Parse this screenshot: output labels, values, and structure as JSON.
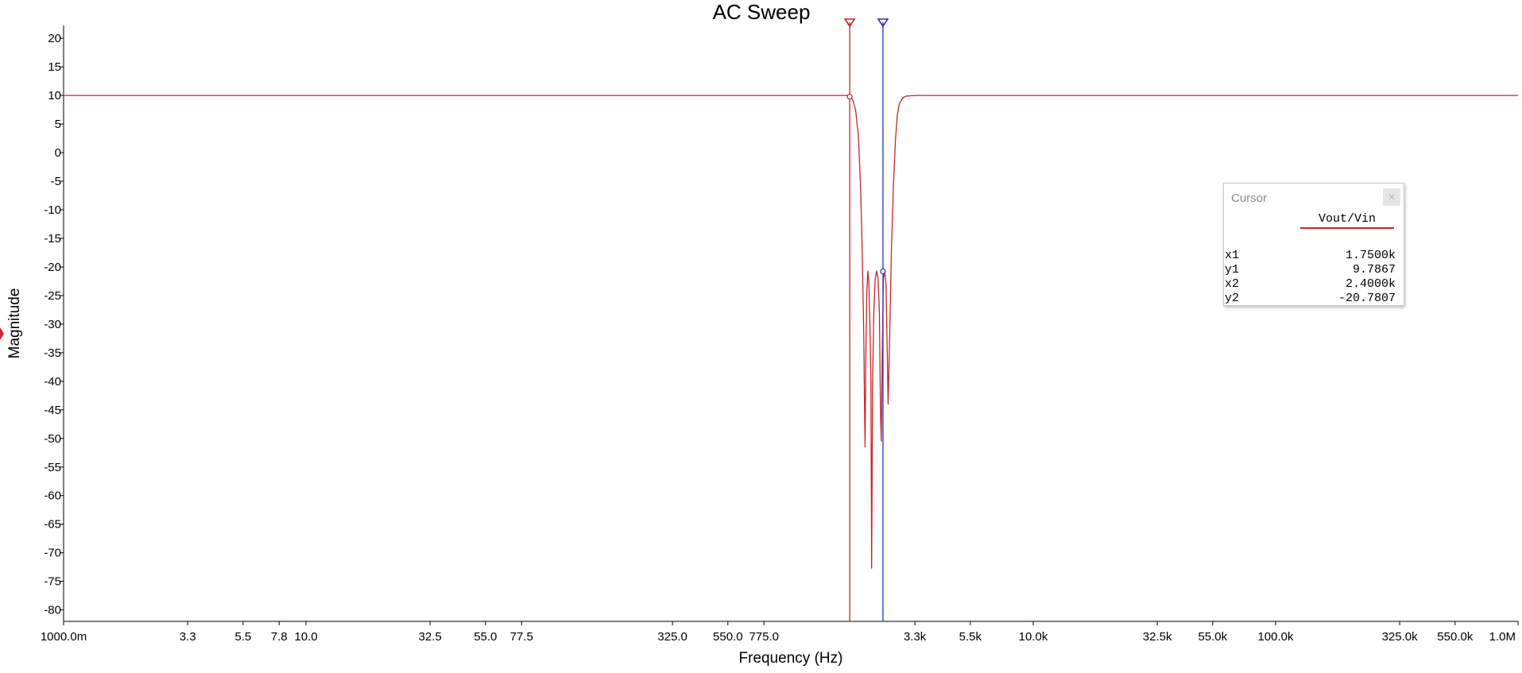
{
  "chart_data": {
    "type": "line",
    "title": "AC Sweep",
    "xlabel": "Frequency (Hz)",
    "ylabel": "Magnitude",
    "x_scale": "log",
    "xlim": [
      1,
      1000000
    ],
    "ylim": [
      -82,
      21
    ],
    "grid": false,
    "y_ticks": [
      20,
      15,
      10,
      5,
      0,
      -5,
      -10,
      -15,
      -20,
      -25,
      -30,
      -35,
      -40,
      -45,
      -50,
      -55,
      -60,
      -65,
      -70,
      -75,
      -80
    ],
    "x_ticks": [
      {
        "value": 1,
        "label": "1000.0m"
      },
      {
        "value": 3.25,
        "label": "3.3"
      },
      {
        "value": 5.5,
        "label": "5.5"
      },
      {
        "value": 7.75,
        "label": "7.8"
      },
      {
        "value": 10,
        "label": "10.0"
      },
      {
        "value": 32.5,
        "label": "32.5"
      },
      {
        "value": 55,
        "label": "55.0"
      },
      {
        "value": 77.5,
        "label": "77.5"
      },
      {
        "value": 325,
        "label": "325.0"
      },
      {
        "value": 550,
        "label": "550.0"
      },
      {
        "value": 775,
        "label": "775.0"
      },
      {
        "value": 3250,
        "label": "3.3k"
      },
      {
        "value": 5500,
        "label": "5.5k"
      },
      {
        "value": 10000,
        "label": "10.0k"
      },
      {
        "value": 32500,
        "label": "32.5k"
      },
      {
        "value": 55000,
        "label": "55.0k"
      },
      {
        "value": 100000,
        "label": "100.0k"
      },
      {
        "value": 325000,
        "label": "325.0k"
      },
      {
        "value": 550000,
        "label": "550.0k"
      },
      {
        "value": 1000000,
        "label": "1.0M"
      }
    ],
    "series": [
      {
        "name": "Vout/Vin",
        "color": "#c8252b",
        "points": [
          [
            1,
            10
          ],
          [
            100,
            10
          ],
          [
            1000,
            10
          ],
          [
            1700,
            10
          ],
          [
            1750,
            9.79
          ],
          [
            1800,
            9.3
          ],
          [
            1850,
            7.5
          ],
          [
            1900,
            3
          ],
          [
            1940,
            -6
          ],
          [
            1970,
            -17
          ],
          [
            2000,
            -32
          ],
          [
            2015,
            -45
          ],
          [
            2025,
            -51.5
          ],
          [
            2040,
            -35
          ],
          [
            2060,
            -24
          ],
          [
            2080,
            -20.7
          ],
          [
            2100,
            -23
          ],
          [
            2120,
            -30
          ],
          [
            2140,
            -40
          ],
          [
            2155,
            -72.7
          ],
          [
            2175,
            -40
          ],
          [
            2200,
            -28
          ],
          [
            2230,
            -22
          ],
          [
            2260,
            -20.7
          ],
          [
            2290,
            -22
          ],
          [
            2320,
            -28
          ],
          [
            2345,
            -46
          ],
          [
            2362,
            -50.5
          ],
          [
            2380,
            -37
          ],
          [
            2410,
            -22
          ],
          [
            2440,
            -20.7
          ],
          [
            2470,
            -23
          ],
          [
            2500,
            -35
          ],
          [
            2520,
            -44
          ],
          [
            2540,
            -38
          ],
          [
            2570,
            -28
          ],
          [
            2600,
            -17
          ],
          [
            2650,
            -6
          ],
          [
            2700,
            2
          ],
          [
            2750,
            6.5
          ],
          [
            2800,
            8.5
          ],
          [
            2900,
            9.6
          ],
          [
            3000,
            9.9
          ],
          [
            3300,
            10
          ],
          [
            10000,
            10
          ],
          [
            100000,
            10
          ],
          [
            1000000,
            10
          ]
        ]
      }
    ],
    "cursors": [
      {
        "name": "1",
        "x": 1750,
        "y": 9.7867,
        "color": "#c8252b"
      },
      {
        "name": "2",
        "x": 2400,
        "y": -20.7807,
        "color": "#2932c0"
      }
    ]
  },
  "cursor_window": {
    "title": "Cursor",
    "close_symbol": "×",
    "series_label": "Vout/Vin",
    "rows": [
      {
        "key": "x1",
        "value": "1.7500k"
      },
      {
        "key": "y1",
        "value": "9.7867"
      },
      {
        "key": "x2",
        "value": "2.4000k"
      },
      {
        "key": "y2",
        "value": "-20.7807"
      }
    ]
  }
}
